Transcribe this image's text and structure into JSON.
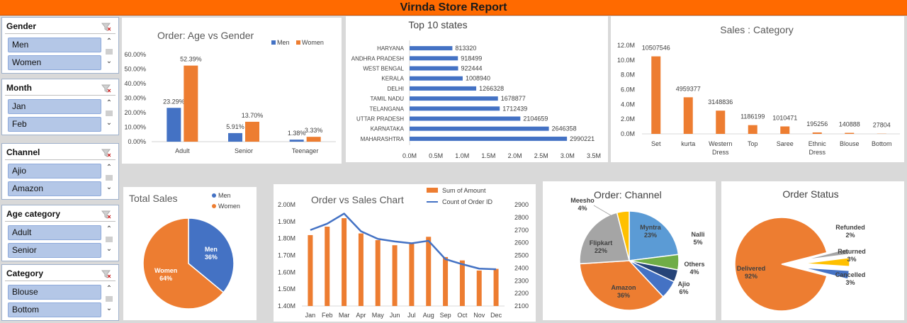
{
  "report": {
    "title": "Virnda Store Report"
  },
  "colors": {
    "blue": "#4472c4",
    "orange": "#ed7d31",
    "gray": "#a5a5a5",
    "yellow": "#ffc000",
    "lightblue": "#5b9bd5",
    "green": "#70ad47",
    "navy": "#264478",
    "banner": "#ff6a00"
  },
  "slicers": [
    {
      "header": "Gender",
      "items": [
        "Men",
        "Women"
      ]
    },
    {
      "header": "Month",
      "items": [
        "Jan",
        "Feb"
      ]
    },
    {
      "header": "Channel",
      "items": [
        "Ajio",
        "Amazon"
      ]
    },
    {
      "header": "Age category",
      "items": [
        "Adult",
        "Senior"
      ]
    },
    {
      "header": "Category",
      "items": [
        "Blouse",
        "Bottom"
      ]
    }
  ],
  "chart_data": [
    {
      "id": "age_gender",
      "type": "bar",
      "title": "Order: Age vs Gender",
      "categories": [
        "Adult",
        "Senior",
        "Teenager"
      ],
      "series": [
        {
          "name": "Men",
          "values": [
            23.29,
            5.91,
            1.38
          ],
          "labels": [
            "23.29%",
            "5.91%",
            "1.38%"
          ]
        },
        {
          "name": "Women",
          "values": [
            52.39,
            13.7,
            3.33
          ],
          "labels": [
            "52.39%",
            "13.70%",
            "3.33%"
          ]
        }
      ],
      "y_ticks": [
        "0.00%",
        "10.00%",
        "20.00%",
        "30.00%",
        "40.00%",
        "50.00%",
        "60.00%"
      ],
      "ylim": [
        0,
        60
      ],
      "legend": "top-right"
    },
    {
      "id": "top_states",
      "type": "bar",
      "orientation": "horizontal",
      "title": "Top 10 states",
      "categories": [
        "HARYANA",
        "ANDHRA PRADESH",
        "WEST BENGAL",
        "KERALA",
        "DELHI",
        "TAMIL NADU",
        "TELANGANA",
        "UTTAR PRADESH",
        "KARNATAKA",
        "MAHARASHTRA"
      ],
      "values": [
        813320,
        918499,
        922444,
        1008940,
        1266328,
        1678877,
        1712439,
        2104659,
        2646358,
        2990221
      ],
      "labels": [
        "813320",
        "918499",
        "922444",
        "1008940",
        "1266328",
        "1678877",
        "1712439",
        "2104659",
        "2646358",
        "2990221"
      ],
      "x_ticks": [
        "0.0M",
        "0.5M",
        "1.0M",
        "1.5M",
        "2.0M",
        "2.5M",
        "3.0M",
        "3.5M"
      ],
      "xlim": [
        0,
        3500000
      ]
    },
    {
      "id": "sales_category",
      "type": "bar",
      "title": "Sales : Category",
      "categories": [
        "Set",
        "kurta",
        "Western Dress",
        "Top",
        "Saree",
        "Ethnic Dress",
        "Blouse",
        "Bottom"
      ],
      "category_lines": [
        [
          "Set"
        ],
        [
          "kurta"
        ],
        [
          "Western",
          "Dress"
        ],
        [
          "Top"
        ],
        [
          "Saree"
        ],
        [
          "Ethnic",
          "Dress"
        ],
        [
          "Blouse"
        ],
        [
          "Bottom"
        ]
      ],
      "values": [
        10507546,
        4959377,
        3148836,
        1186199,
        1010471,
        195256,
        140888,
        27804
      ],
      "labels": [
        "10507546",
        "4959377",
        "3148836",
        "1186199",
        "1010471",
        "195256",
        "140888",
        "27804"
      ],
      "y_ticks": [
        "0.0M",
        "2.0M",
        "4.0M",
        "6.0M",
        "8.0M",
        "10.0M",
        "12.0M"
      ],
      "ylim": [
        0,
        12000000
      ]
    },
    {
      "id": "total_sales",
      "type": "pie",
      "title": "Total Sales",
      "slices": [
        {
          "name": "Men",
          "value": 36,
          "label": "36%"
        },
        {
          "name": "Women",
          "value": 64,
          "label": "64%"
        }
      ],
      "legend": [
        "Men",
        "Women"
      ]
    },
    {
      "id": "order_sales",
      "type": "bar",
      "combo": "bar+line",
      "title": "Order vs Sales Chart",
      "categories": [
        "Jan",
        "Feb",
        "Mar",
        "Apr",
        "May",
        "Jun",
        "Jul",
        "Aug",
        "Sep",
        "Oct",
        "Nov",
        "Dec"
      ],
      "series": [
        {
          "name": "Sum of Amount",
          "type": "bar",
          "axis": "left",
          "values": [
            1.82,
            1.87,
            1.92,
            1.83,
            1.79,
            1.76,
            1.77,
            1.81,
            1.69,
            1.67,
            1.61,
            1.62
          ]
        },
        {
          "name": "Count of Order ID",
          "type": "line",
          "axis": "right",
          "values": [
            2700,
            2750,
            2830,
            2690,
            2630,
            2610,
            2595,
            2615,
            2470,
            2430,
            2395,
            2390
          ]
        }
      ],
      "y_ticks_left": [
        "1.40M",
        "1.50M",
        "1.60M",
        "1.70M",
        "1.80M",
        "1.90M",
        "2.00M"
      ],
      "ylim_left": [
        1.4,
        2.0
      ],
      "y_ticks_right": [
        "2100",
        "2200",
        "2300",
        "2400",
        "2500",
        "2600",
        "2700",
        "2800",
        "2900"
      ],
      "ylim_right": [
        2100,
        2900
      ],
      "legend": "top"
    },
    {
      "id": "order_channel",
      "type": "pie",
      "title": "Order: Channel",
      "slices": [
        {
          "name": "Myntra",
          "value": 23,
          "label": "23%"
        },
        {
          "name": "Nalli",
          "value": 5,
          "label": "5%"
        },
        {
          "name": "Others",
          "value": 4,
          "label": "4%"
        },
        {
          "name": "Ajio",
          "value": 6,
          "label": "6%"
        },
        {
          "name": "Amazon",
          "value": 36,
          "label": "36%"
        },
        {
          "name": "Flipkart",
          "value": 22,
          "label": "22%"
        },
        {
          "name": "Meesho",
          "value": 4,
          "label": "4%"
        }
      ]
    },
    {
      "id": "order_status",
      "type": "pie",
      "title": "Order Status",
      "slices": [
        {
          "name": "Delivered",
          "value": 92,
          "label": "92%"
        },
        {
          "name": "Refunded",
          "value": 2,
          "label": "2%"
        },
        {
          "name": "Returned",
          "value": 3,
          "label": "3%"
        },
        {
          "name": "Cancelled",
          "value": 3,
          "label": "3%"
        }
      ]
    }
  ]
}
